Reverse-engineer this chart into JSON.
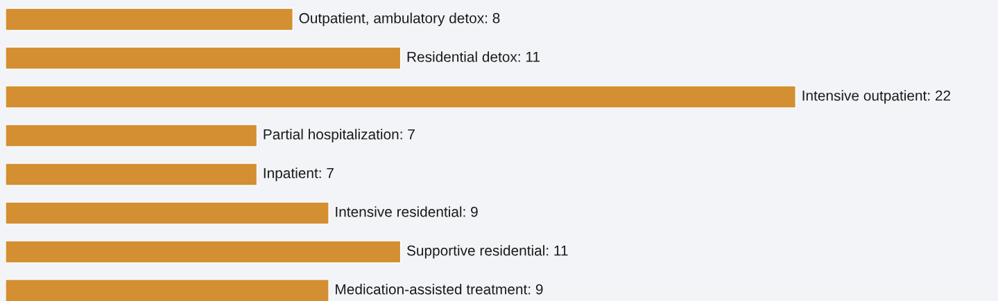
{
  "chart_data": {
    "type": "bar",
    "orientation": "horizontal",
    "categories": [
      null,
      null,
      null,
      null,
      null,
      null,
      null,
      null
    ],
    "values": [
      8,
      11,
      22,
      7,
      7,
      9,
      11,
      9
    ],
    "value_labels": [
      "Outpatient, ambulatory detox: 8",
      "Residential detox: 11",
      "Intensive outpatient: 22",
      "Partial hospitalization: 7",
      "Inpatient: 7",
      "Intensive residential: 9",
      "Supportive residential: 11",
      "Medication-assisted treatment: 9"
    ],
    "color": "#d38f31"
  }
}
